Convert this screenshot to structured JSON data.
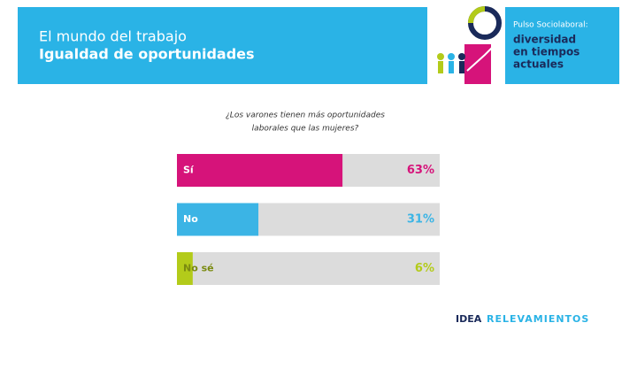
{
  "chart_data": {
    "type": "bar",
    "title": "El mundo del trabajo",
    "subtitle": "Igualdad de oportunidades",
    "brand": {
      "kicker": "Pulso Sociolaboral:",
      "lines": [
        "diversidad",
        "en tiempos",
        "actuales"
      ]
    },
    "question": [
      "¿Los varones tienen más oportunidades",
      "laborales que las mujeres?"
    ],
    "categories": [
      "Sí",
      "No",
      "No sé"
    ],
    "values": [
      63,
      31,
      6
    ],
    "value_labels": [
      "63%",
      "31%",
      "6%"
    ],
    "colors": [
      "#d6137a",
      "#3bb4e5",
      "#b3cb1a"
    ],
    "xlim": [
      0,
      100
    ],
    "footer": [
      "IDEA",
      "RELEVAMIENTOS"
    ]
  }
}
